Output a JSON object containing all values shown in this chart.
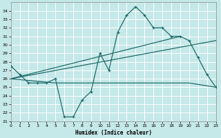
{
  "xlabel": "Humidex (Indice chaleur)",
  "background_color": "#c5e8e8",
  "grid_color": "#ffffff",
  "line_color": "#1e6b6b",
  "xlim": [
    0,
    23
  ],
  "ylim": [
    21,
    35
  ],
  "xticks": [
    0,
    1,
    2,
    3,
    4,
    5,
    6,
    7,
    8,
    9,
    10,
    11,
    12,
    13,
    14,
    15,
    16,
    17,
    18,
    19,
    20,
    21,
    22,
    23
  ],
  "yticks": [
    21,
    22,
    23,
    24,
    25,
    26,
    27,
    28,
    29,
    30,
    31,
    32,
    33,
    34
  ],
  "series1_x": [
    0,
    1,
    2,
    3,
    4,
    5,
    6,
    7,
    8,
    9,
    10,
    11,
    12,
    13,
    14,
    15,
    16,
    17,
    18,
    19,
    20,
    21,
    22,
    23
  ],
  "series1_y": [
    27.5,
    26.5,
    25.5,
    25.5,
    25.5,
    26.0,
    21.5,
    21.5,
    23.5,
    24.5,
    29.0,
    27.0,
    31.5,
    33.5,
    34.5,
    33.5,
    32.0,
    32.0,
    31.0,
    31.0,
    30.5,
    28.5,
    26.5,
    25.0
  ],
  "series2_x": [
    0,
    23
  ],
  "series2_y": [
    26.0,
    30.5
  ],
  "series3_x": [
    0,
    19
  ],
  "series3_y": [
    26.0,
    31.0
  ],
  "series4_x": [
    0,
    5,
    9,
    16,
    20,
    23
  ],
  "series4_y": [
    26.0,
    25.5,
    25.5,
    25.5,
    25.5,
    25.0
  ]
}
